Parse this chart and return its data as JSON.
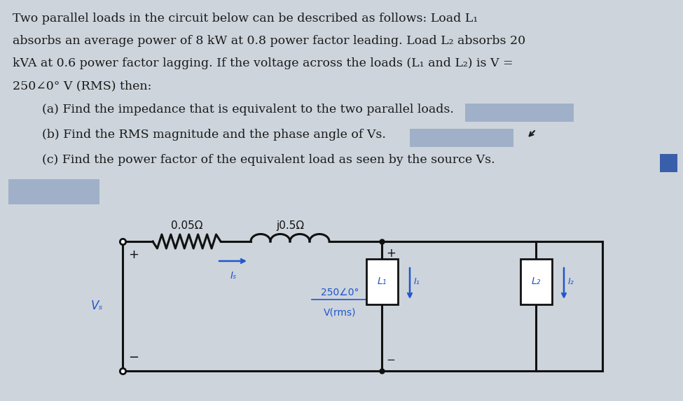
{
  "bg_color": "#cdd4dc",
  "text_color": "#1a1a1a",
  "circuit_color": "#111111",
  "blue_color": "#2255cc",
  "answer_box_light": "#9fb0c8",
  "answer_box_blue": "#3a5faa",
  "title_lines": [
    "Two parallel loads in the circuit below can be described as follows: Load L₁",
    "absorbs an average power of 8 kW at 0.8 power factor leading. Load L₂ absorbs 20",
    "kVA at 0.6 power factor lagging. If the voltage across the loads (L₁ and L₂) is V =",
    "250∠0° V (RMS) then:"
  ],
  "q_lines": [
    "(a) Find the impedance that is equivalent to the two parallel loads.",
    "(b) Find the RMS magnitude and the phase angle of Vs.",
    "(c) Find the power factor of the equivalent load as seen by the source Vs."
  ],
  "resistor_label": "0.05Ω",
  "inductor_label": "j0.5Ω",
  "volt_line1": "250∠0°",
  "volt_line2": "V(rms)",
  "Is_label": "Iₛ",
  "Vs_label": "Vₛ",
  "L1_label": "L₁",
  "L2_label": "L₂",
  "I1_label": "I₁",
  "I2_label": "I₂",
  "plus_label": "+",
  "minus_label": "−"
}
